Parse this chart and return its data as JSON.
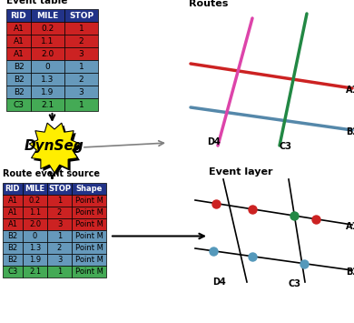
{
  "event_table_title": "Event table",
  "event_table_headers": [
    "RID",
    "MILE",
    "STOP"
  ],
  "event_table_data": [
    [
      "A1",
      "0.2",
      "1"
    ],
    [
      "A1",
      "1.1",
      "2"
    ],
    [
      "A1",
      "2.0",
      "3"
    ],
    [
      "B2",
      "0",
      "1"
    ],
    [
      "B2",
      "1.3",
      "2"
    ],
    [
      "B2",
      "1.9",
      "3"
    ],
    [
      "C3",
      "2.1",
      "1"
    ]
  ],
  "event_table_row_colors": [
    "#cc2222",
    "#cc2222",
    "#cc2222",
    "#6699bb",
    "#6699bb",
    "#6699bb",
    "#44aa55"
  ],
  "route_table_title": "Route event source",
  "route_table_headers": [
    "RID",
    "MILE",
    "STOP",
    "Shape"
  ],
  "route_table_data": [
    [
      "A1",
      "0.2",
      "1",
      "Point M"
    ],
    [
      "A1",
      "1.1",
      "2",
      "Point M"
    ],
    [
      "A1",
      "2.0",
      "3",
      "Point M"
    ],
    [
      "B2",
      "0",
      "1",
      "Point M"
    ],
    [
      "B2",
      "1.3",
      "2",
      "Point M"
    ],
    [
      "B2",
      "1.9",
      "3",
      "Point M"
    ],
    [
      "C3",
      "2.1",
      "1",
      "Point M"
    ]
  ],
  "route_table_row_colors": [
    "#cc2222",
    "#cc2222",
    "#cc2222",
    "#6699bb",
    "#6699bb",
    "#6699bb",
    "#44aa55"
  ],
  "header_color": "#223388",
  "header_text_color": "#ffffff",
  "routes_title": "Routes",
  "event_layer_title": "Event layer",
  "dynseg_label": "DynSeg",
  "route_A1_color": "#cc2222",
  "route_B2_color": "#5588aa",
  "route_D4_color": "#dd44aa",
  "route_C3_color": "#228844",
  "dot_red": "#cc2222",
  "dot_green": "#228844",
  "dot_blue": "#5599bb"
}
